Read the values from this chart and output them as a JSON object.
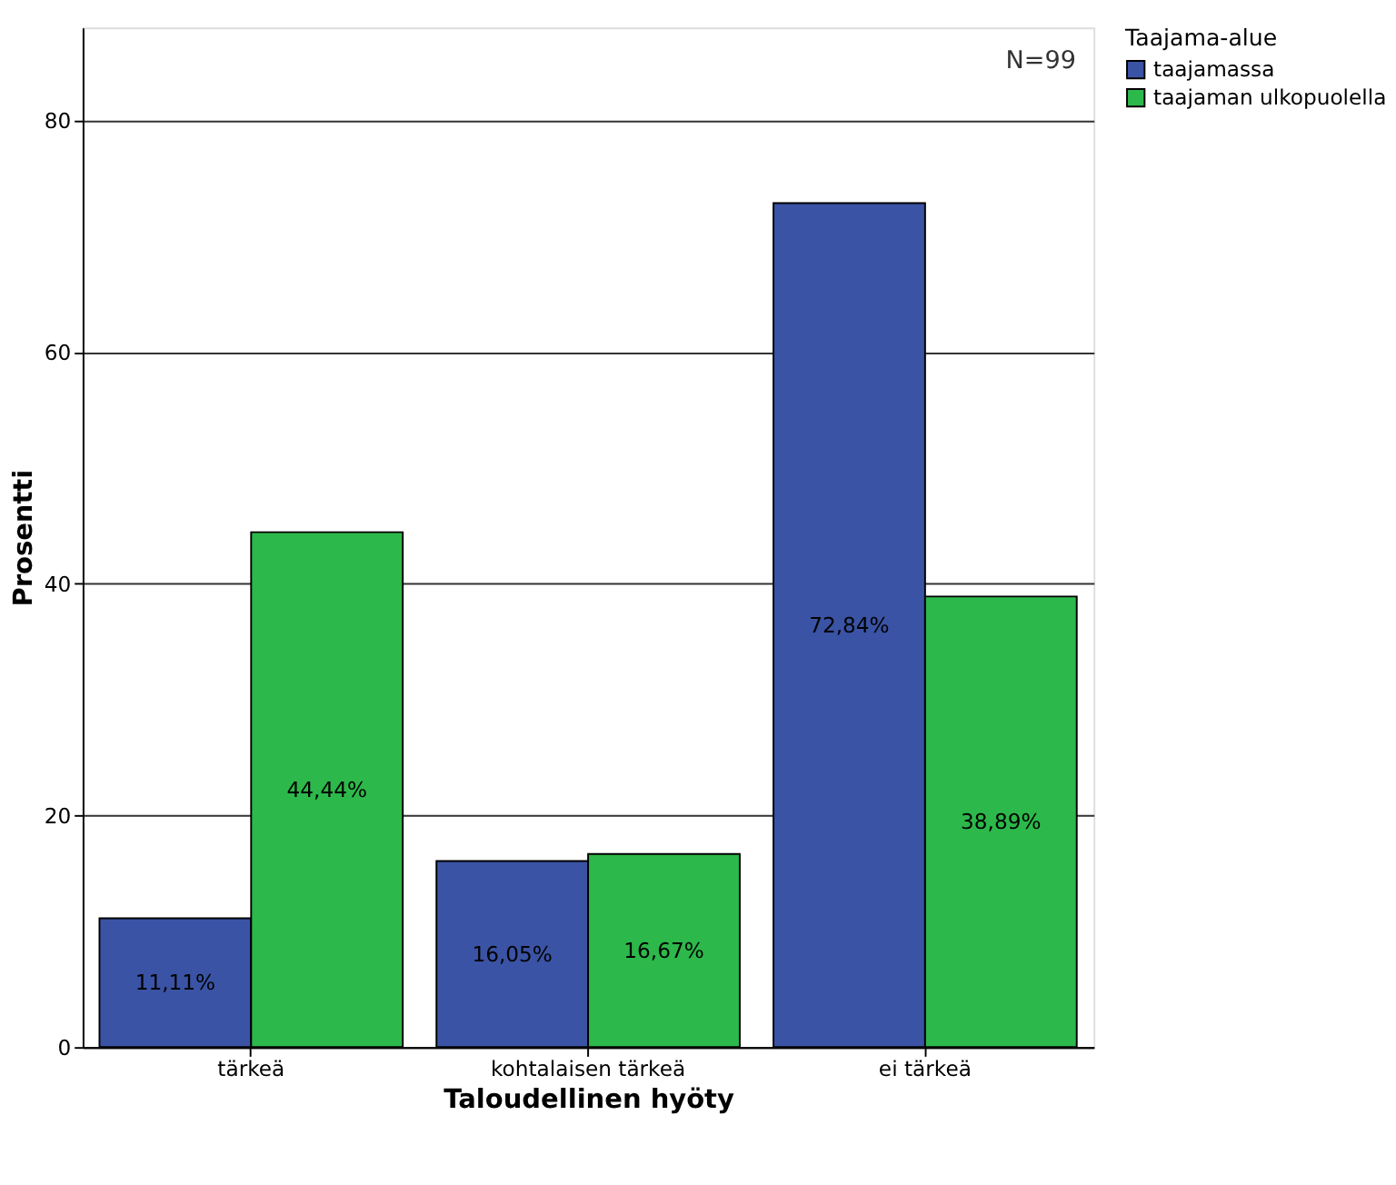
{
  "chart_data": {
    "type": "bar",
    "xlabel": "Taloudellinen hyöty",
    "ylabel": "Prosentti",
    "legend_title": "Taajama-alue",
    "categories": [
      "tärkeä",
      "kohtalaisen tärkeä",
      "ei tärkeä"
    ],
    "series": [
      {
        "name": "taajamassa",
        "color": "#3a53a4",
        "values": [
          11.11,
          16.05,
          72.84
        ],
        "value_labels": [
          "11,11%",
          "16,05%",
          "72,84%"
        ]
      },
      {
        "name": "taajaman ulkopuolella",
        "color": "#2db84b",
        "values": [
          44.44,
          16.67,
          38.89
        ],
        "value_labels": [
          "44,44%",
          "16,67%",
          "38,89%"
        ]
      }
    ],
    "ylim": [
      0,
      88
    ],
    "yticks": [
      0,
      20,
      40,
      60,
      80
    ],
    "grid": "y",
    "legend": "top right",
    "annotations": [
      "N=99"
    ]
  }
}
